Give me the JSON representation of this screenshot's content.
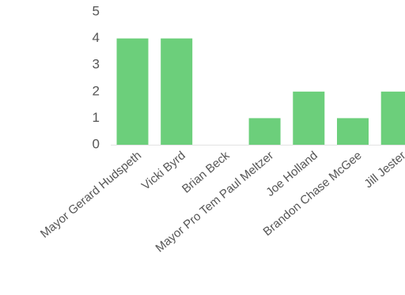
{
  "chart_data": {
    "type": "bar",
    "categories": [
      "Mayor Gerard Hudspeth",
      "Vicki Byrd",
      "Brian Beck",
      "Mayor Pro Tem Paul Meltzer",
      "Joe Holland",
      "Brandon Chase McGee",
      "Jill Jester"
    ],
    "values": [
      4,
      4,
      0,
      1,
      2,
      1,
      2
    ],
    "yticks": [
      "0",
      "1",
      "2",
      "3",
      "4",
      "5"
    ],
    "ylim": [
      0,
      5
    ],
    "grid": false,
    "legend": "none",
    "colors": {
      "bar": "#6ccf7b",
      "axis": "#e3e3e3",
      "text": "#555555"
    }
  }
}
